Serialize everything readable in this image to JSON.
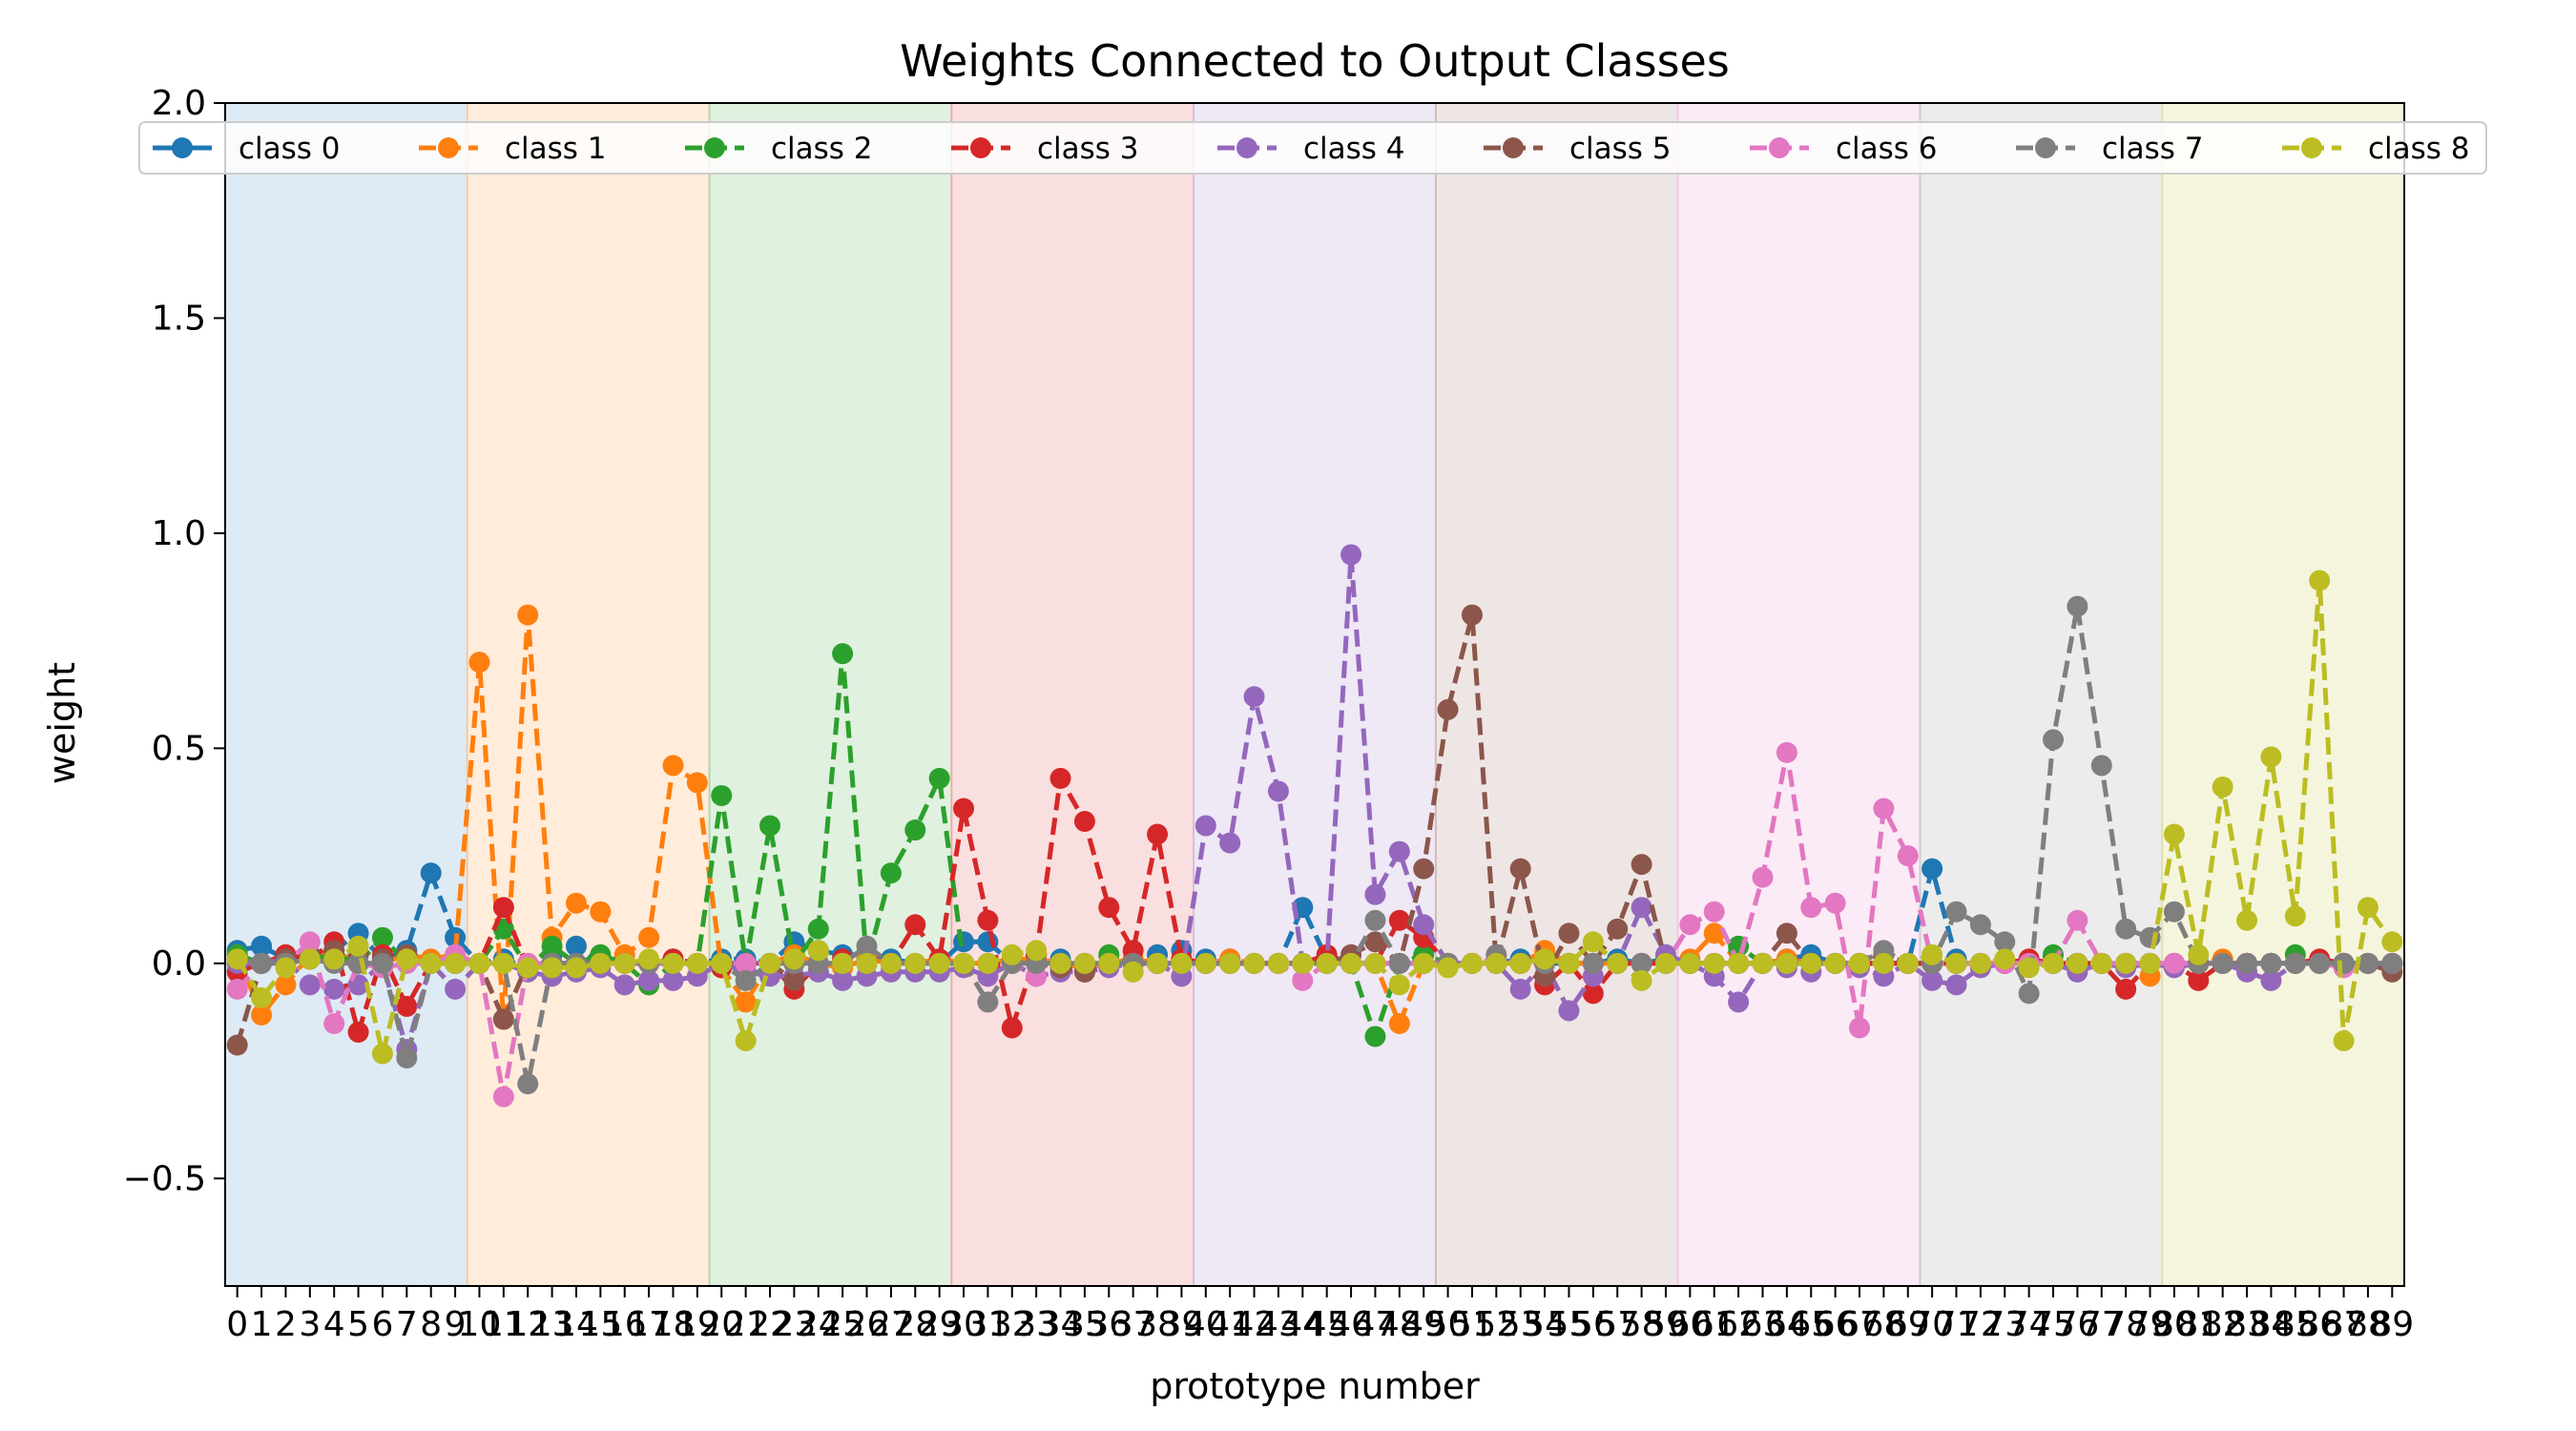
{
  "chart_data": {
    "type": "line",
    "title": "Weights Connected to Output Classes",
    "xlabel": "prototype number",
    "ylabel": "weight",
    "ylim": [
      -0.75,
      2.0
    ],
    "xlim": [
      -0.5,
      89.5
    ],
    "y_ticks": [
      "2.0",
      "1.5",
      "1.0",
      "0.5",
      "0.0",
      "−0.5"
    ],
    "y_tick_values": [
      2.0,
      1.5,
      1.0,
      0.5,
      0.0,
      -0.5
    ],
    "x_tick_count": 90,
    "grid": false,
    "legend_position": "top",
    "band_colors": [
      "#1f77b4",
      "#ff7f0e",
      "#2ca02c",
      "#d62728",
      "#9467bd",
      "#8c564b",
      "#e377c2",
      "#7f7f7f",
      "#bcbd22"
    ],
    "series": [
      {
        "name": "class 0",
        "color": "#1f77b4",
        "values": [
          0.03,
          0.04,
          0.01,
          0.02,
          0.03,
          0.07,
          0.01,
          0.03,
          0.21,
          0.06,
          0.0,
          0.01,
          -0.01,
          0.02,
          0.04,
          0.0,
          0.0,
          0.0,
          0.01,
          0.0,
          0.01,
          0.01,
          0.0,
          0.05,
          0.03,
          0.02,
          0.02,
          0.01,
          0.0,
          0.0,
          0.05,
          0.05,
          0.0,
          0.02,
          0.01,
          0.0,
          0.0,
          0.0,
          0.02,
          0.03,
          0.01,
          0.01,
          0.0,
          0.0,
          0.13,
          0.01,
          0.0,
          0.0,
          0.0,
          0.0,
          0.0,
          0.0,
          0.0,
          0.01,
          0.0,
          0.0,
          0.0,
          0.01,
          0.0,
          0.01,
          0.0,
          0.0,
          0.0,
          0.0,
          0.01,
          0.02,
          0.0,
          0.0,
          0.0,
          0.0,
          0.22,
          0.01,
          0.0,
          0.0,
          0.0,
          0.0,
          0.0,
          0.0,
          0.0,
          0.0,
          0.0,
          0.0,
          0.0,
          0.0,
          0.0,
          0.0,
          0.0,
          0.0,
          0.0,
          0.0
        ]
      },
      {
        "name": "class 1",
        "color": "#ff7f0e",
        "values": [
          0.02,
          -0.12,
          -0.05,
          0.02,
          0.03,
          0.0,
          0.0,
          0.02,
          0.01,
          0.02,
          0.7,
          -0.13,
          0.81,
          0.06,
          0.14,
          0.12,
          0.02,
          0.06,
          0.46,
          0.42,
          -0.01,
          -0.09,
          0.0,
          0.02,
          0.0,
          -0.01,
          0.01,
          0.0,
          0.0,
          0.01,
          0.0,
          0.0,
          0.01,
          0.01,
          0.0,
          -0.01,
          0.0,
          0.01,
          0.0,
          0.0,
          0.0,
          0.01,
          0.0,
          0.0,
          0.0,
          0.0,
          0.0,
          0.0,
          -0.14,
          0.0,
          0.0,
          0.0,
          0.0,
          0.0,
          0.03,
          0.0,
          0.0,
          0.0,
          0.0,
          0.0,
          0.01,
          0.07,
          0.0,
          0.0,
          0.01,
          0.0,
          0.0,
          0.0,
          0.0,
          0.0,
          0.0,
          0.0,
          0.0,
          0.0,
          0.0,
          0.0,
          0.0,
          0.0,
          0.0,
          -0.03,
          0.0,
          0.0,
          0.01,
          0.0,
          0.0,
          0.0,
          0.0,
          0.0,
          0.0,
          0.0
        ]
      },
      {
        "name": "class 2",
        "color": "#2ca02c",
        "values": [
          0.02,
          0.0,
          0.01,
          0.01,
          0.02,
          0.0,
          0.06,
          0.0,
          0.0,
          0.0,
          0.0,
          0.08,
          -0.01,
          0.04,
          0.0,
          0.02,
          0.0,
          -0.05,
          0.0,
          0.0,
          0.39,
          0.0,
          0.32,
          0.0,
          0.08,
          0.72,
          0.0,
          0.21,
          0.31,
          0.43,
          0.0,
          0.0,
          0.0,
          0.02,
          0.0,
          0.0,
          0.02,
          0.0,
          0.0,
          0.0,
          0.0,
          0.0,
          0.0,
          0.0,
          0.0,
          0.0,
          0.0,
          -0.17,
          0.0,
          0.02,
          0.0,
          0.0,
          0.0,
          0.0,
          0.0,
          0.0,
          0.0,
          0.0,
          0.0,
          0.0,
          0.0,
          0.0,
          0.04,
          0.0,
          0.0,
          0.0,
          0.0,
          0.0,
          0.0,
          0.0,
          0.0,
          0.0,
          0.0,
          0.0,
          0.0,
          0.02,
          0.0,
          0.0,
          0.0,
          0.0,
          0.0,
          0.0,
          0.0,
          0.0,
          0.0,
          0.02,
          0.0,
          0.0,
          0.0,
          0.0
        ]
      },
      {
        "name": "class 3",
        "color": "#d62728",
        "values": [
          -0.02,
          0.0,
          0.02,
          0.01,
          0.05,
          -0.16,
          0.02,
          -0.1,
          0.0,
          0.0,
          0.0,
          0.13,
          -0.01,
          0.0,
          0.0,
          0.0,
          0.0,
          0.0,
          0.01,
          0.0,
          -0.01,
          0.0,
          0.0,
          -0.06,
          0.0,
          0.01,
          0.0,
          0.0,
          0.09,
          0.01,
          0.36,
          0.1,
          -0.15,
          0.02,
          0.43,
          0.33,
          0.13,
          0.03,
          0.3,
          0.01,
          0.0,
          0.0,
          0.0,
          0.0,
          0.0,
          0.02,
          0.0,
          0.0,
          0.1,
          0.06,
          0.0,
          0.0,
          0.0,
          0.0,
          -0.05,
          0.0,
          -0.07,
          0.0,
          0.0,
          0.0,
          0.0,
          0.0,
          0.0,
          0.0,
          0.0,
          0.0,
          0.0,
          0.0,
          0.0,
          0.0,
          0.0,
          0.0,
          0.0,
          0.0,
          0.01,
          0.0,
          0.0,
          0.0,
          -0.06,
          0.0,
          0.0,
          -0.04,
          0.0,
          0.0,
          0.0,
          0.0,
          0.01,
          0.0,
          0.0,
          0.0
        ]
      },
      {
        "name": "class 4",
        "color": "#9467bd",
        "values": [
          0.0,
          0.0,
          0.01,
          -0.05,
          -0.06,
          -0.05,
          0.0,
          -0.2,
          0.0,
          -0.06,
          0.0,
          0.0,
          -0.02,
          -0.03,
          -0.02,
          -0.01,
          -0.05,
          -0.04,
          -0.04,
          -0.03,
          0.0,
          -0.02,
          -0.03,
          -0.03,
          -0.02,
          -0.04,
          -0.03,
          -0.02,
          -0.02,
          -0.02,
          -0.01,
          -0.03,
          0.0,
          -0.03,
          -0.02,
          -0.02,
          -0.01,
          0.0,
          0.0,
          -0.03,
          0.32,
          0.28,
          0.62,
          0.4,
          0.0,
          0.0,
          0.95,
          0.16,
          0.26,
          0.09,
          0.0,
          0.0,
          0.0,
          -0.06,
          0.0,
          -0.11,
          -0.03,
          0.0,
          0.13,
          0.02,
          0.0,
          -0.03,
          -0.09,
          0.0,
          -0.01,
          -0.02,
          0.0,
          -0.01,
          -0.03,
          0.0,
          -0.04,
          -0.05,
          -0.01,
          0.0,
          0.0,
          0.0,
          -0.02,
          0.0,
          -0.01,
          0.0,
          -0.01,
          0.0,
          0.0,
          -0.02,
          -0.04,
          0.0,
          0.0,
          0.0,
          0.0,
          0.0
        ]
      },
      {
        "name": "class 5",
        "color": "#8c564b",
        "values": [
          -0.19,
          0.0,
          0.01,
          0.02,
          0.03,
          0.02,
          0.01,
          0.02,
          0.0,
          0.0,
          0.0,
          -0.13,
          0.0,
          0.0,
          0.0,
          0.0,
          0.0,
          0.0,
          0.0,
          0.0,
          0.0,
          0.0,
          0.0,
          -0.04,
          0.0,
          0.0,
          0.0,
          0.0,
          0.0,
          0.0,
          0.0,
          0.0,
          0.0,
          0.0,
          -0.01,
          -0.02,
          0.0,
          0.0,
          0.0,
          0.0,
          0.0,
          0.0,
          0.0,
          0.0,
          0.0,
          0.0,
          0.02,
          0.05,
          0.0,
          0.22,
          0.59,
          0.81,
          0.0,
          0.22,
          -0.03,
          0.07,
          0.0,
          0.08,
          0.23,
          0.0,
          0.0,
          0.0,
          0.0,
          0.0,
          0.07,
          0.0,
          0.0,
          0.0,
          0.02,
          0.0,
          0.0,
          0.0,
          0.0,
          0.0,
          0.0,
          0.0,
          0.0,
          0.0,
          0.0,
          0.0,
          0.0,
          0.0,
          0.0,
          0.0,
          0.0,
          0.0,
          0.0,
          0.0,
          0.0,
          -0.02
        ]
      },
      {
        "name": "class 6",
        "color": "#e377c2",
        "values": [
          -0.06,
          0.0,
          0.0,
          0.05,
          -0.14,
          0.0,
          -0.01,
          0.0,
          0.0,
          0.02,
          0.0,
          -0.31,
          0.0,
          0.0,
          0.0,
          0.0,
          0.0,
          0.0,
          0.0,
          0.0,
          0.0,
          0.0,
          0.0,
          0.0,
          0.0,
          0.0,
          0.0,
          0.0,
          0.0,
          0.0,
          0.0,
          0.0,
          0.0,
          -0.03,
          0.0,
          0.0,
          0.0,
          0.0,
          0.0,
          0.0,
          0.0,
          0.0,
          0.0,
          0.0,
          -0.04,
          0.0,
          0.0,
          0.0,
          0.0,
          0.0,
          0.0,
          0.0,
          0.01,
          0.0,
          0.0,
          0.0,
          0.0,
          0.0,
          0.0,
          0.0,
          0.09,
          0.12,
          0.0,
          0.2,
          0.49,
          0.13,
          0.14,
          -0.15,
          0.36,
          0.25,
          0.0,
          0.0,
          0.0,
          0.0,
          0.0,
          0.0,
          0.1,
          0.0,
          0.0,
          0.0,
          0.0,
          0.0,
          0.0,
          0.0,
          0.0,
          0.0,
          0.0,
          -0.01,
          0.0,
          0.0
        ]
      },
      {
        "name": "class 7",
        "color": "#7f7f7f",
        "values": [
          0.01,
          0.0,
          0.0,
          0.01,
          0.0,
          0.0,
          0.0,
          -0.22,
          0.0,
          0.0,
          0.0,
          0.0,
          -0.28,
          0.0,
          0.0,
          0.0,
          0.0,
          0.0,
          0.0,
          0.0,
          0.0,
          -0.04,
          0.0,
          0.0,
          0.0,
          0.0,
          0.04,
          0.0,
          0.0,
          0.0,
          0.0,
          -0.09,
          0.0,
          0.0,
          0.0,
          0.0,
          0.0,
          0.0,
          0.0,
          0.0,
          0.0,
          0.0,
          0.0,
          0.0,
          0.0,
          0.0,
          0.0,
          0.1,
          0.0,
          0.0,
          0.0,
          0.0,
          0.02,
          0.0,
          0.0,
          0.0,
          0.0,
          0.0,
          0.0,
          0.0,
          0.0,
          0.0,
          0.0,
          0.0,
          0.0,
          0.0,
          0.0,
          0.0,
          0.03,
          0.0,
          0.0,
          0.12,
          0.09,
          0.05,
          -0.07,
          0.52,
          0.83,
          0.46,
          0.08,
          0.06,
          0.12,
          0.0,
          0.0,
          0.0,
          0.0,
          0.0,
          0.0,
          0.0,
          0.0,
          0.0
        ]
      },
      {
        "name": "class 8",
        "color": "#bcbd22",
        "values": [
          0.01,
          -0.08,
          -0.01,
          0.01,
          0.01,
          0.04,
          -0.21,
          0.01,
          0.0,
          0.0,
          0.0,
          0.0,
          -0.01,
          -0.01,
          -0.01,
          0.0,
          0.0,
          0.01,
          0.0,
          0.0,
          0.0,
          -0.18,
          0.0,
          0.01,
          0.03,
          0.0,
          0.0,
          0.0,
          0.0,
          0.0,
          0.0,
          0.0,
          0.02,
          0.03,
          0.0,
          0.0,
          0.0,
          -0.02,
          0.0,
          0.0,
          0.0,
          0.0,
          0.0,
          0.0,
          0.0,
          0.0,
          0.0,
          0.0,
          -0.05,
          0.0,
          -0.01,
          0.0,
          0.0,
          0.0,
          0.01,
          0.0,
          0.05,
          0.0,
          -0.04,
          0.0,
          0.0,
          0.0,
          0.0,
          0.0,
          0.0,
          0.0,
          0.0,
          0.0,
          0.0,
          0.0,
          0.02,
          0.0,
          0.0,
          0.01,
          -0.01,
          0.0,
          0.0,
          0.0,
          0.0,
          0.0,
          0.3,
          0.02,
          0.41,
          0.1,
          0.48,
          0.11,
          0.89,
          -0.18,
          0.13,
          0.05
        ]
      }
    ]
  }
}
